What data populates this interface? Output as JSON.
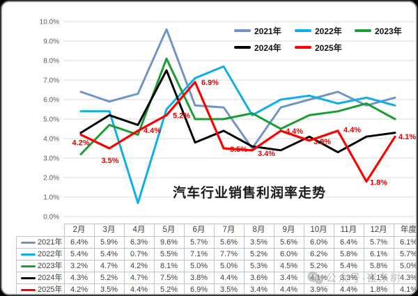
{
  "chart_data": {
    "type": "line",
    "title": "汽车行业销售利润率走势",
    "categories": [
      "2月",
      "3月",
      "4月",
      "5月",
      "6月",
      "7月",
      "8月",
      "9月",
      "10月",
      "11月",
      "12月",
      "年度"
    ],
    "series": [
      {
        "name": "2021年",
        "color": "#7293C6",
        "values": [
          6.4,
          5.9,
          6.3,
          9.6,
          5.7,
          5.6,
          3.5,
          5.6,
          6.0,
          6.4,
          5.7,
          6.1
        ]
      },
      {
        "name": "2022年",
        "color": "#0EAEE8",
        "values": [
          5.4,
          5.4,
          0.7,
          5.5,
          7.1,
          7.7,
          5.2,
          6.0,
          6.2,
          5.8,
          6.1,
          5.7
        ]
      },
      {
        "name": "2023年",
        "color": "#1A9E34",
        "values": [
          3.2,
          4.7,
          4.2,
          8.1,
          5.0,
          5.0,
          5.3,
          4.5,
          5.2,
          5.4,
          5.8,
          5.0
        ]
      },
      {
        "name": "2024年",
        "color": "#000000",
        "values": [
          4.3,
          5.2,
          4.7,
          7.5,
          3.8,
          4.4,
          3.6,
          3.4,
          4.1,
          3.3,
          4.1,
          4.3
        ]
      },
      {
        "name": "2025年",
        "color": "#FF0000",
        "values": [
          4.2,
          3.5,
          4.4,
          5.2,
          6.9,
          3.5,
          3.4,
          4.4,
          3.9,
          4.4,
          1.8,
          4.1
        ],
        "data_labels": true
      }
    ],
    "ylim": [
      0,
      10
    ],
    "y_step": 1,
    "y_tick_labels": [
      "0.0%",
      "1.0%",
      "2.0%",
      "3.0%",
      "4.0%",
      "5.0%",
      "6.0%",
      "7.0%",
      "8.0%",
      "9.0%",
      "10.0%"
    ],
    "value_format": "percent_1dp",
    "grid": "horizontal",
    "legend_position": "top-right",
    "data_label_color": "#E80000"
  },
  "table": {
    "corner_label": "",
    "col_headers": [
      "2月",
      "3月",
      "4月",
      "5月",
      "6月",
      "7月",
      "8月",
      "9月",
      "10月",
      "11月",
      "12月",
      "年度"
    ],
    "row_labels": [
      "2021年",
      "2022年",
      "2023年",
      "2024年",
      "2025年"
    ],
    "cell_values": [
      [
        "6.4%",
        "5.9%",
        "6.3%",
        "9.6%",
        "5.7%",
        "5.6%",
        "3.5%",
        "5.6%",
        "6.0%",
        "6.4%",
        "5.7%",
        "6.1%"
      ],
      [
        "5.4%",
        "5.4%",
        "0.7%",
        "5.5%",
        "7.1%",
        "7.7%",
        "5.2%",
        "6.0%",
        "6.2%",
        "5.8%",
        "6.1%",
        "5.7%"
      ],
      [
        "3.2%",
        "4.7%",
        "4.2%",
        "8.1%",
        "5.0%",
        "5.0%",
        "5.3%",
        "4.5%",
        "5.2%",
        "5.4%",
        "5.8%",
        "5.0%"
      ],
      [
        "4.3%",
        "5.2%",
        "4.7%",
        "7.5%",
        "3.8%",
        "4.4%",
        "3.6%",
        "3.4%",
        "4.1%",
        "3.3%",
        "4.1%",
        "4.3%"
      ],
      [
        "4.2%",
        "3.5%",
        "4.4%",
        "5.2%",
        "6.9%",
        "3.5%",
        "3.4%",
        "4.4%",
        "3.9%",
        "4.4%",
        "1.8%",
        "4.1%"
      ]
    ]
  },
  "watermark": {
    "text": "公众号·崔东树",
    "icon": "wechat-icon"
  }
}
